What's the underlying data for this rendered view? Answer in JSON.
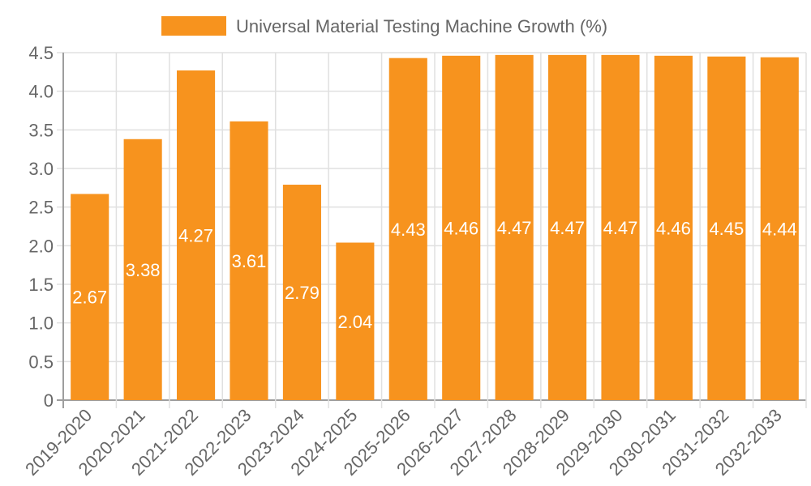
{
  "chart_data": {
    "type": "bar",
    "title": "",
    "legend": [
      {
        "label": "Universal Material Testing Machine Growth (%)",
        "color": "#f7931e"
      }
    ],
    "legend_position": "top",
    "xlabel": "",
    "ylabel": "",
    "ylim": [
      0,
      4.5
    ],
    "yticks": [
      "0",
      "0.5",
      "1.0",
      "1.5",
      "2.0",
      "2.5",
      "3.0",
      "3.5",
      "4.0",
      "4.5"
    ],
    "grid": true,
    "categories": [
      "2019-2020",
      "2020-2021",
      "2021-2022",
      "2022-2023",
      "2023-2024",
      "2024-2025",
      "2025-2026",
      "2026-2027",
      "2027-2028",
      "2028-2029",
      "2029-2030",
      "2030-2031",
      "2031-2032",
      "2032-2033"
    ],
    "series": [
      {
        "name": "Universal Material Testing Machine Growth (%)",
        "color": "#f7931e",
        "values": [
          2.67,
          3.38,
          4.27,
          3.61,
          2.79,
          2.04,
          4.43,
          4.46,
          4.47,
          4.47,
          4.47,
          4.46,
          4.45,
          4.44
        ],
        "labels": [
          "2.67",
          "3.38",
          "4.27",
          "3.61",
          "2.79",
          "2.04",
          "4.43",
          "4.46",
          "4.47",
          "4.47",
          "4.47",
          "4.46",
          "4.45",
          "4.44"
        ]
      }
    ]
  },
  "colors": {
    "bar": "#f7931e",
    "grid": "#e0e0e0",
    "axis": "#9e9e9e",
    "text": "#666666",
    "label": "#ffffff"
  }
}
